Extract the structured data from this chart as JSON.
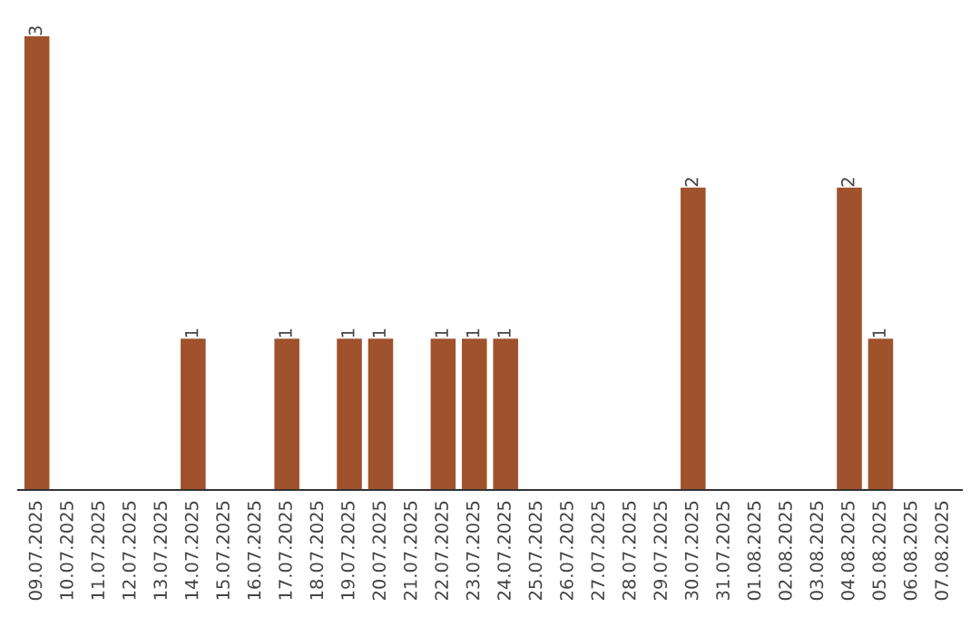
{
  "chart_data": {
    "type": "bar",
    "categories": [
      "09.07.2025",
      "10.07.2025",
      "11.07.2025",
      "12.07.2025",
      "13.07.2025",
      "14.07.2025",
      "15.07.2025",
      "16.07.2025",
      "17.07.2025",
      "18.07.2025",
      "19.07.2025",
      "20.07.2025",
      "21.07.2025",
      "22.07.2025",
      "23.07.2025",
      "24.07.2025",
      "25.07.2025",
      "26.07.2025",
      "27.07.2025",
      "28.07.2025",
      "29.07.2025",
      "30.07.2025",
      "31.07.2025",
      "01.08.2025",
      "02.08.2025",
      "03.08.2025",
      "04.08.2025",
      "05.08.2025",
      "06.08.2025",
      "07.08.2025"
    ],
    "values": [
      3,
      0,
      0,
      0,
      0,
      1,
      0,
      0,
      1,
      0,
      1,
      1,
      0,
      1,
      1,
      1,
      0,
      0,
      0,
      0,
      0,
      2,
      0,
      0,
      0,
      0,
      2,
      1,
      0,
      0
    ],
    "value_labels": [
      "3",
      null,
      null,
      null,
      null,
      "1",
      null,
      null,
      "1",
      null,
      "1",
      "1",
      null,
      "1",
      "1",
      "1",
      null,
      null,
      null,
      null,
      null,
      "2",
      null,
      null,
      null,
      null,
      "2",
      "1",
      null,
      null
    ],
    "color": "#a0522d",
    "grid": false,
    "legend": false
  }
}
